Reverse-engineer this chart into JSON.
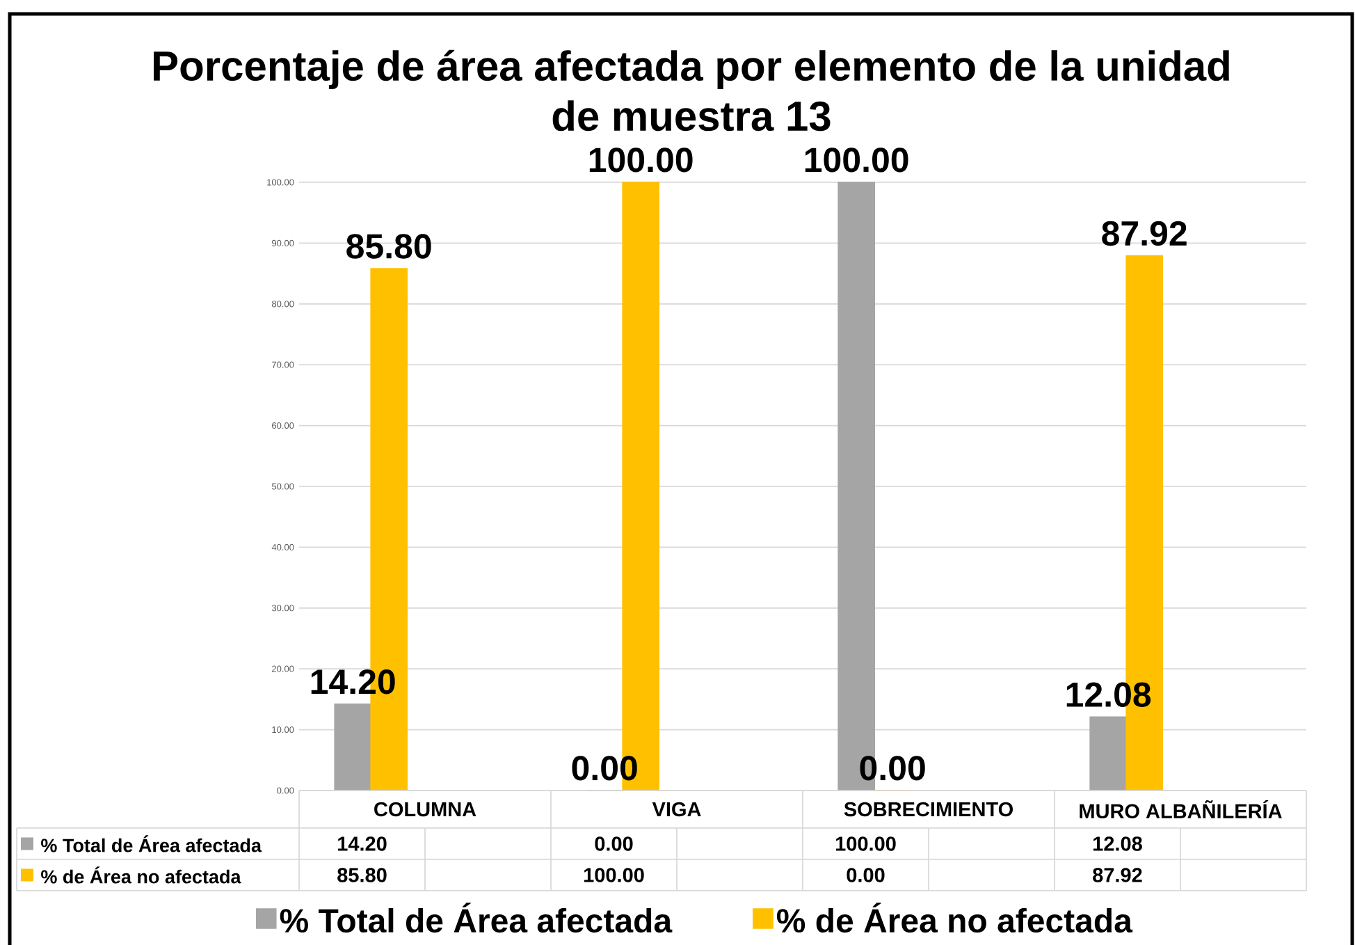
{
  "chart_data": {
    "type": "bar",
    "title": "Porcentaje de área afectada por elemento de la unidad de muestra 13",
    "categories": [
      "COLUMNA",
      "VIGA",
      "SOBRECIMIENTO",
      "MURO ALBAÑILERÍA"
    ],
    "series": [
      {
        "name": "% Total de Área afectada",
        "color": "#a5a5a5",
        "values": [
          14.2,
          0,
          100,
          12.08
        ],
        "value_labels": [
          "14.20",
          "0.00",
          "100.00",
          "12.08"
        ]
      },
      {
        "name": "% de Área no afectada",
        "color": "#ffc000",
        "values": [
          85.8,
          100,
          0,
          87.92
        ],
        "value_labels": [
          "85.80",
          "100.00",
          "0.00",
          "87.92"
        ]
      }
    ],
    "ylim": [
      0,
      100
    ],
    "yticks": [
      {
        "value": 0,
        "label": "0.00"
      },
      {
        "value": 10,
        "label": "10.00"
      },
      {
        "value": 20,
        "label": "20.00"
      },
      {
        "value": 30,
        "label": "30.00"
      },
      {
        "value": 40,
        "label": "40.00"
      },
      {
        "value": 50,
        "label": "50.00"
      },
      {
        "value": 60,
        "label": "60.00"
      },
      {
        "value": 70,
        "label": "70.00"
      },
      {
        "value": 80,
        "label": "80.00"
      },
      {
        "value": 90,
        "label": "90.00"
      },
      {
        "value": 100,
        "label": "100.00"
      }
    ],
    "grid": "y",
    "legend": "bottom"
  }
}
